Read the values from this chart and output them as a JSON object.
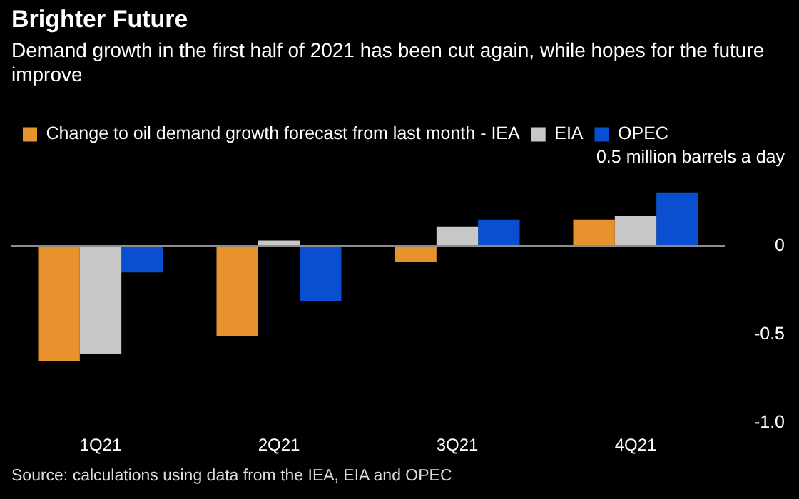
{
  "chart_data": {
    "type": "bar",
    "title": "Brighter Future",
    "subtitle": "Demand growth in the first half of 2021 has been cut again, while hopes for the future improve",
    "categories": [
      "1Q21",
      "2Q21",
      "3Q21",
      "4Q21"
    ],
    "series": [
      {
        "name": "Change to oil demand growth forecast from last month - IEA",
        "color": "#e8922e",
        "values": [
          -0.65,
          -0.51,
          -0.09,
          0.15
        ]
      },
      {
        "name": "EIA",
        "color": "#c8c8c8",
        "values": [
          -0.61,
          0.03,
          0.11,
          0.17
        ]
      },
      {
        "name": "OPEC",
        "color": "#0a4fd0",
        "values": [
          -0.15,
          -0.31,
          0.15,
          0.3
        ]
      }
    ],
    "ylim": [
      -1.0,
      0.5
    ],
    "yticks": [
      {
        "value": 0.5,
        "label": "0.5 million barrels a day"
      },
      0,
      {
        "value": -0.5,
        "label": "-0.5"
      },
      {
        "value": -1.0,
        "label": "-1.0"
      }
    ],
    "ref_lines": [
      {
        "axis": "y",
        "value": 0,
        "color": "#8c8c8c"
      }
    ],
    "grid": false,
    "legend": "top left",
    "annotations": [
      "Source: calculations using data from the IEA, EIA and OPEC"
    ]
  }
}
